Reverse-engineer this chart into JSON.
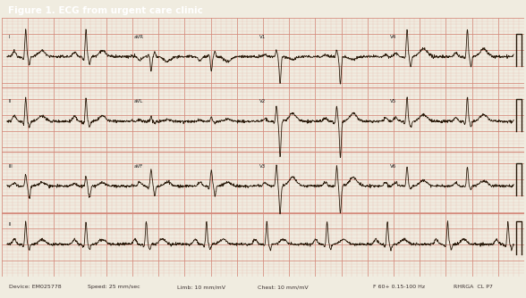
{
  "title": "Figure 1. ECG from urgent care clinic",
  "title_bg": "#6b8832",
  "title_color": "#ffffff",
  "ecg_bg": "#f5d8cc",
  "grid_major_color": "#d4887a",
  "grid_minor_color": "#e8b8ac",
  "ecg_line_color": "#2a1a0a",
  "footer_bg": "#ddd5c5",
  "footer_text_color": "#3a3030",
  "fig_width": 5.9,
  "fig_height": 3.37,
  "dpi": 100,
  "border_color": "#888888",
  "white_border": "#f0ece0"
}
